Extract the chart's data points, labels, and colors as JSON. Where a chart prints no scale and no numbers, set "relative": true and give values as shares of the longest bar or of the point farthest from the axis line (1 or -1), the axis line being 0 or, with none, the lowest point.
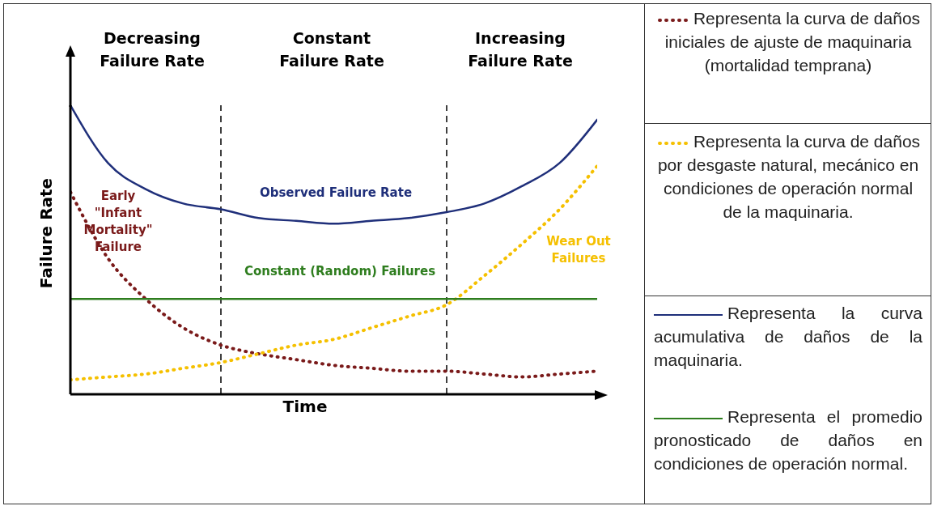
{
  "chart_data": {
    "type": "line",
    "relative": true,
    "xlabel": "Time",
    "ylabel": "Failure Rate",
    "categories": [
      null,
      null,
      null,
      null,
      null,
      null,
      null,
      null,
      null,
      null,
      null,
      null,
      null,
      null,
      null
    ],
    "series": [
      {
        "name": "Early \"Infant Mortality\" Failure",
        "color": "#7a1a1a",
        "line_style": "dotted",
        "values": [
          0.7,
          0.47,
          0.33,
          0.23,
          0.17,
          0.14,
          0.12,
          0.1,
          0.09,
          0.08,
          0.08,
          0.07,
          0.06,
          0.07,
          0.08
        ]
      },
      {
        "name": "Wear Out Failures",
        "color": "#f5c000",
        "line_style": "dotted",
        "values": [
          0.05,
          0.06,
          0.07,
          0.09,
          0.11,
          0.14,
          0.17,
          0.19,
          0.23,
          0.27,
          0.31,
          0.41,
          0.52,
          0.64,
          0.79
        ]
      },
      {
        "name": "Observed Failure Rate",
        "color": "#1f2f7a",
        "line_style": "solid",
        "values": [
          1,
          0.8,
          0.71,
          0.66,
          0.64,
          0.61,
          0.6,
          0.59,
          0.6,
          0.61,
          0.63,
          0.66,
          0.72,
          0.8,
          0.95
        ]
      },
      {
        "name": "Constant (Random) Failures",
        "color": "#2e7d1e",
        "line_style": "solid",
        "values": [
          0.33,
          0.33,
          0.33,
          0.33,
          0.33,
          0.33,
          0.33,
          0.33,
          0.33,
          0.33,
          0.33,
          0.33,
          0.33,
          0.33,
          0.33
        ]
      }
    ],
    "annotations": [
      "Decreasing Failure Rate",
      "Constant Failure Rate",
      "Increasing Failure Rate",
      "Representa la curva de daños iniciales de ajuste de maquinaria (mortalidad temprana)",
      "Representa la curva de daños por desgaste natural, mecánico en condiciones de operación normal de la maquinaria.",
      "Representa la curva acumulativa de daños de la maquinaria.",
      "Representa el promedio pronosticado de daños en condiciones de operación normal."
    ],
    "grid": false,
    "marker": "none"
  }
}
